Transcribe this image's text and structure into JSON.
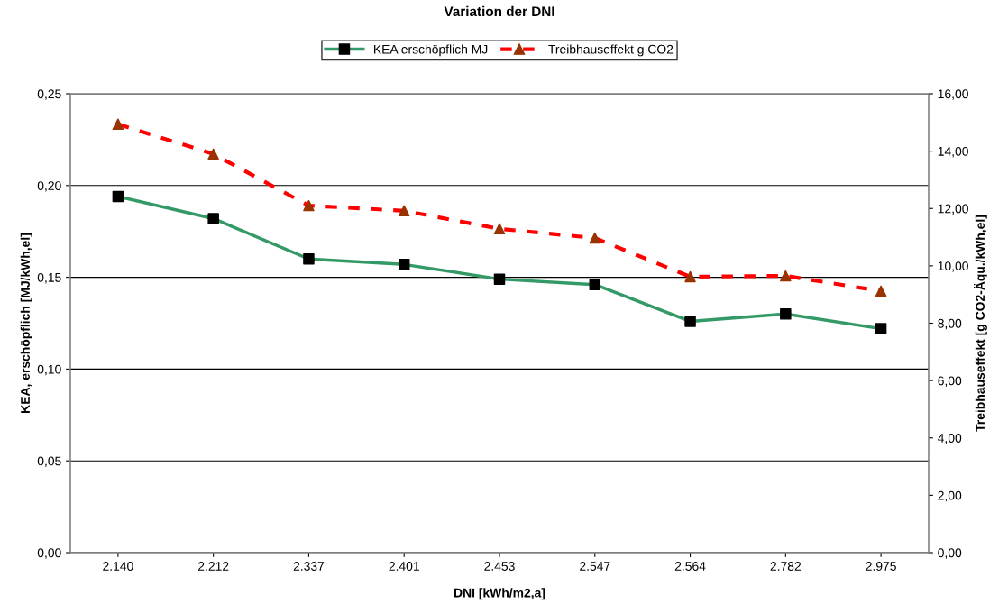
{
  "chart_data": {
    "type": "line",
    "title": "Variation der DNI",
    "xlabel": "DNI [kWh/m2,a]",
    "ylabel": "KEA, erschöpflich [MJ/kWh,el]",
    "y2label": "Treibhauseffekt [g CO2-Äqu./kWh,el]",
    "categories": [
      "2.140",
      "2.212",
      "2.337",
      "2.401",
      "2.453",
      "2.547",
      "2.564",
      "2.782",
      "2.975"
    ],
    "series": [
      {
        "name": "KEA erschöpflich MJ",
        "color": "#339966",
        "colors": [
          "#000000",
          "#000000",
          "#000000",
          "#000000",
          "#000000",
          "#000000",
          "#000000",
          "#000000",
          "#000000"
        ],
        "marker": "square",
        "line_style": "solid",
        "values": [
          0.194,
          0.182,
          0.16,
          0.157,
          0.149,
          0.146,
          0.126,
          0.13,
          0.122
        ]
      },
      {
        "name": "Treibhauseffekt g CO2",
        "color": "#ff0000",
        "colors": [
          "#993300",
          "#993300",
          "#993300",
          "#993300",
          "#993300",
          "#993300",
          "#993300",
          "#993300",
          "#993300"
        ],
        "marker": "triangle",
        "line_style": "dashed",
        "axis": "y2",
        "values": [
          14.94,
          13.9,
          12.1,
          11.92,
          11.29,
          10.97,
          9.62,
          9.65,
          9.12
        ]
      }
    ],
    "ylim": [
      0,
      0.25
    ],
    "yticks": [
      {
        "value": 0,
        "label": "0,00"
      },
      {
        "value": 0.05,
        "label": "0,05"
      },
      {
        "value": 0.1,
        "label": "0,10"
      },
      {
        "value": 0.15,
        "label": "0,15"
      },
      {
        "value": 0.2,
        "label": "0,20"
      },
      {
        "value": 0.25,
        "label": "0,25"
      }
    ],
    "y2lim": [
      0,
      16
    ],
    "y2ticks": [
      {
        "value": 0,
        "label": "0,00"
      },
      {
        "value": 2,
        "label": "2,00"
      },
      {
        "value": 4,
        "label": "4,00"
      },
      {
        "value": 6,
        "label": "6,00"
      },
      {
        "value": 8,
        "label": "8,00"
      },
      {
        "value": 10,
        "label": "10,00"
      },
      {
        "value": 12,
        "label": "12,00"
      },
      {
        "value": 14,
        "label": "14,00"
      },
      {
        "value": 16,
        "label": "16,00"
      }
    ],
    "grid": "y",
    "legend": "top"
  }
}
